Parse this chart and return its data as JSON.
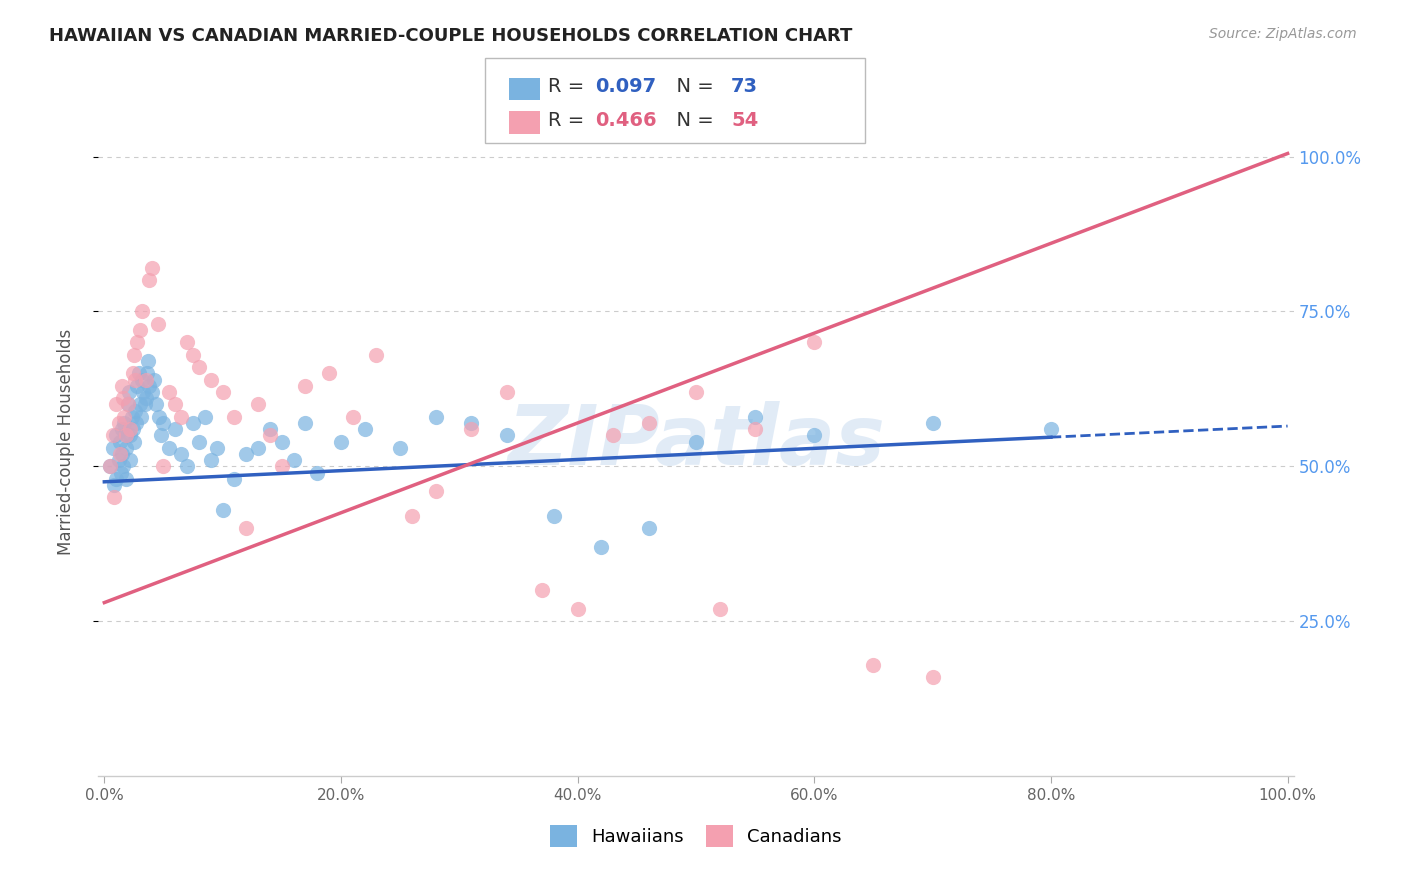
{
  "title": "HAWAIIAN VS CANADIAN MARRIED-COUPLE HOUSEHOLDS CORRELATION CHART",
  "source": "Source: ZipAtlas.com",
  "ylabel": "Married-couple Households",
  "hawaiian_R": 0.097,
  "hawaiian_N": 73,
  "canadian_R": 0.466,
  "canadian_N": 54,
  "hawaiian_color": "#7ab3e0",
  "canadian_color": "#f4a0b0",
  "hawaiian_line_color": "#3060c0",
  "canadian_line_color": "#e06080",
  "watermark": "ZIPatlas",
  "legend_label_1": "Hawaiians",
  "legend_label_2": "Canadians",
  "hawaiian_line_x0": 0.0,
  "hawaiian_line_y0": 0.475,
  "hawaiian_line_x1": 1.0,
  "hawaiian_line_y1": 0.565,
  "canadian_line_x0": 0.0,
  "canadian_line_y0": 0.28,
  "canadian_line_x1": 1.0,
  "canadian_line_y1": 1.005,
  "hawaiian_scatter_x": [
    0.005,
    0.007,
    0.008,
    0.01,
    0.01,
    0.012,
    0.013,
    0.014,
    0.015,
    0.015,
    0.016,
    0.017,
    0.018,
    0.018,
    0.019,
    0.02,
    0.021,
    0.022,
    0.022,
    0.023,
    0.024,
    0.025,
    0.026,
    0.027,
    0.028,
    0.029,
    0.03,
    0.031,
    0.032,
    0.033,
    0.034,
    0.035,
    0.036,
    0.037,
    0.038,
    0.04,
    0.042,
    0.044,
    0.046,
    0.048,
    0.05,
    0.055,
    0.06,
    0.065,
    0.07,
    0.075,
    0.08,
    0.085,
    0.09,
    0.095,
    0.1,
    0.11,
    0.12,
    0.13,
    0.14,
    0.15,
    0.16,
    0.17,
    0.18,
    0.2,
    0.22,
    0.25,
    0.28,
    0.31,
    0.34,
    0.38,
    0.42,
    0.46,
    0.5,
    0.55,
    0.6,
    0.7,
    0.8
  ],
  "hawaiian_scatter_y": [
    0.5,
    0.53,
    0.47,
    0.55,
    0.48,
    0.51,
    0.54,
    0.49,
    0.56,
    0.52,
    0.5,
    0.57,
    0.53,
    0.48,
    0.55,
    0.6,
    0.62,
    0.55,
    0.51,
    0.58,
    0.56,
    0.54,
    0.59,
    0.57,
    0.63,
    0.65,
    0.6,
    0.58,
    0.64,
    0.62,
    0.6,
    0.61,
    0.65,
    0.67,
    0.63,
    0.62,
    0.64,
    0.6,
    0.58,
    0.55,
    0.57,
    0.53,
    0.56,
    0.52,
    0.5,
    0.57,
    0.54,
    0.58,
    0.51,
    0.53,
    0.43,
    0.48,
    0.52,
    0.53,
    0.56,
    0.54,
    0.51,
    0.57,
    0.49,
    0.54,
    0.56,
    0.53,
    0.58,
    0.57,
    0.55,
    0.42,
    0.37,
    0.4,
    0.54,
    0.58,
    0.55,
    0.57,
    0.56
  ],
  "canadian_scatter_x": [
    0.005,
    0.007,
    0.008,
    0.01,
    0.012,
    0.013,
    0.015,
    0.016,
    0.017,
    0.018,
    0.02,
    0.022,
    0.024,
    0.025,
    0.026,
    0.028,
    0.03,
    0.032,
    0.035,
    0.038,
    0.04,
    0.045,
    0.05,
    0.055,
    0.06,
    0.065,
    0.07,
    0.075,
    0.08,
    0.09,
    0.1,
    0.11,
    0.12,
    0.13,
    0.14,
    0.15,
    0.17,
    0.19,
    0.21,
    0.23,
    0.26,
    0.28,
    0.31,
    0.34,
    0.37,
    0.4,
    0.43,
    0.46,
    0.5,
    0.52,
    0.55,
    0.6,
    0.65,
    0.7
  ],
  "canadian_scatter_y": [
    0.5,
    0.55,
    0.45,
    0.6,
    0.57,
    0.52,
    0.63,
    0.61,
    0.58,
    0.55,
    0.6,
    0.56,
    0.65,
    0.68,
    0.64,
    0.7,
    0.72,
    0.75,
    0.64,
    0.8,
    0.82,
    0.73,
    0.5,
    0.62,
    0.6,
    0.58,
    0.7,
    0.68,
    0.66,
    0.64,
    0.62,
    0.58,
    0.4,
    0.6,
    0.55,
    0.5,
    0.63,
    0.65,
    0.58,
    0.68,
    0.42,
    0.46,
    0.56,
    0.62,
    0.3,
    0.27,
    0.55,
    0.57,
    0.62,
    0.27,
    0.56,
    0.7,
    0.18,
    0.16
  ],
  "ylim_min": 0.0,
  "ylim_max": 1.08,
  "xlim_min": -0.005,
  "xlim_max": 1.005
}
